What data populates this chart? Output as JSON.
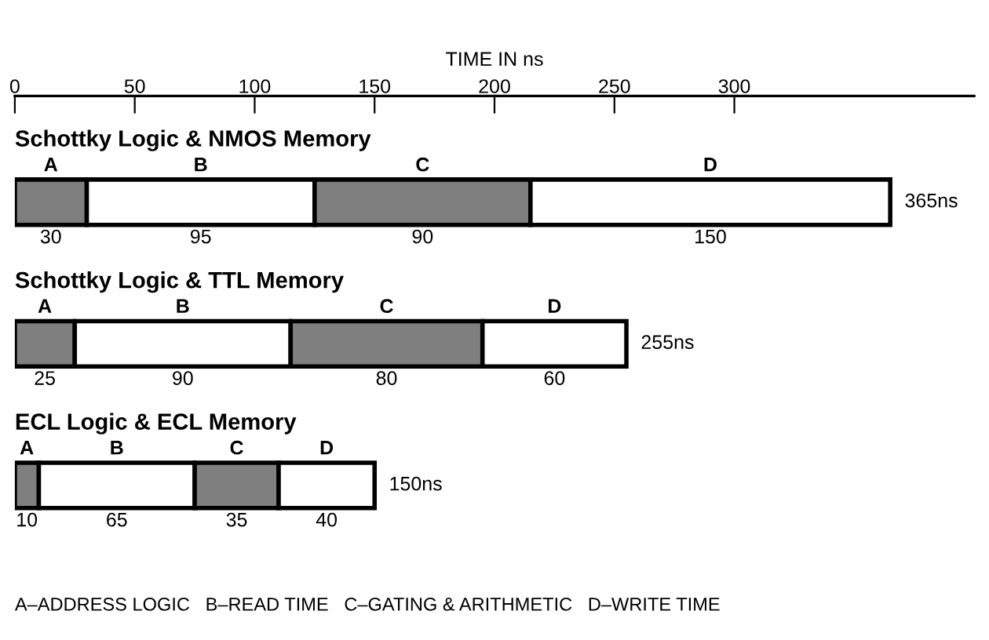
{
  "chart_data": {
    "type": "bar",
    "orientation": "horizontal",
    "stacked": true,
    "xlabel": "TIME IN ns",
    "categories": [
      "Schottky Logic & NMOS Memory",
      "Schottky Logic & TTL Memory",
      "ECL Logic & ECL Memory"
    ],
    "series": [
      {
        "name": "A",
        "color": "#7f7f7f",
        "values": [
          30,
          25,
          10
        ]
      },
      {
        "name": "B",
        "color": "#ffffff",
        "values": [
          95,
          90,
          65
        ]
      },
      {
        "name": "C",
        "color": "#7f7f7f",
        "values": [
          90,
          80,
          35
        ]
      },
      {
        "name": "D",
        "color": "#ffffff",
        "values": [
          150,
          60,
          40
        ]
      }
    ],
    "data_labels": true,
    "totals": [
      "365ns",
      "255ns",
      "150ns"
    ],
    "xlim": [
      0,
      400
    ],
    "xticks": [
      0,
      50,
      100,
      150,
      200,
      250,
      300
    ],
    "grid": false,
    "legend": false,
    "annotations": [
      "A–ADDRESS LOGIC   B–READ TIME   C–GATING & ARITHMETIC   D–WRITE TIME"
    ]
  }
}
